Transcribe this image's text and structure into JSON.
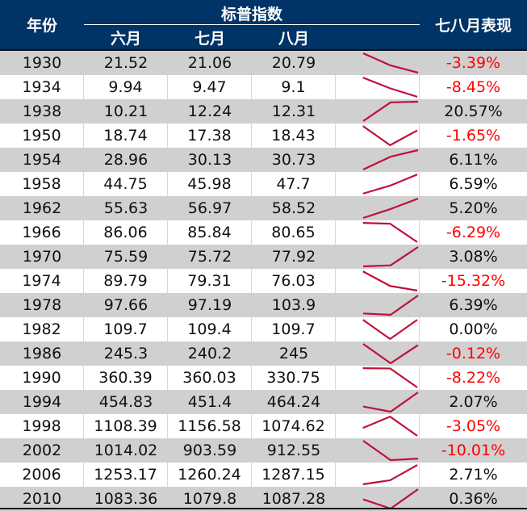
{
  "header": {
    "year_label": "年份",
    "group_label": "标普指数",
    "months": [
      "六月",
      "七月",
      "八月"
    ],
    "performance_label": "七八月表现"
  },
  "colors": {
    "header_bg": "#003366",
    "header_text": "#ffffff",
    "row_shaded": "#d0d0d0",
    "row_plain": "#ffffff",
    "negative": "#ff0000",
    "sparkline": "#c0103a"
  },
  "rows": [
    {
      "year": "1930",
      "jun": "21.52",
      "jul": "21.06",
      "aug": "20.79",
      "perf": "-3.39%"
    },
    {
      "year": "1934",
      "jun": "9.94",
      "jul": "9.47",
      "aug": "9.1",
      "perf": "-8.45%"
    },
    {
      "year": "1938",
      "jun": "10.21",
      "jul": "12.24",
      "aug": "12.31",
      "perf": "20.57%"
    },
    {
      "year": "1950",
      "jun": "18.74",
      "jul": "17.38",
      "aug": "18.43",
      "perf": "-1.65%"
    },
    {
      "year": "1954",
      "jun": "28.96",
      "jul": "30.13",
      "aug": "30.73",
      "perf": "6.11%"
    },
    {
      "year": "1958",
      "jun": "44.75",
      "jul": "45.98",
      "aug": "47.7",
      "perf": "6.59%"
    },
    {
      "year": "1962",
      "jun": "55.63",
      "jul": "56.97",
      "aug": "58.52",
      "perf": "5.20%"
    },
    {
      "year": "1966",
      "jun": "86.06",
      "jul": "85.84",
      "aug": "80.65",
      "perf": "-6.29%"
    },
    {
      "year": "1970",
      "jun": "75.59",
      "jul": "75.72",
      "aug": "77.92",
      "perf": "3.08%"
    },
    {
      "year": "1974",
      "jun": "89.79",
      "jul": "79.31",
      "aug": "76.03",
      "perf": "-15.32%"
    },
    {
      "year": "1978",
      "jun": "97.66",
      "jul": "97.19",
      "aug": "103.9",
      "perf": "6.39%"
    },
    {
      "year": "1982",
      "jun": "109.7",
      "jul": "109.4",
      "aug": "109.7",
      "perf": "0.00%"
    },
    {
      "year": "1986",
      "jun": "245.3",
      "jul": "240.2",
      "aug": "245",
      "perf": "-0.12%"
    },
    {
      "year": "1990",
      "jun": "360.39",
      "jul": "360.03",
      "aug": "330.75",
      "perf": "-8.22%"
    },
    {
      "year": "1994",
      "jun": "454.83",
      "jul": "451.4",
      "aug": "464.24",
      "perf": "2.07%"
    },
    {
      "year": "1998",
      "jun": "1108.39",
      "jul": "1156.58",
      "aug": "1074.62",
      "perf": "-3.05%"
    },
    {
      "year": "2002",
      "jun": "1014.02",
      "jul": "903.59",
      "aug": "912.55",
      "perf": "-10.01%"
    },
    {
      "year": "2006",
      "jun": "1253.17",
      "jul": "1260.24",
      "aug": "1287.15",
      "perf": "2.71%"
    },
    {
      "year": "2010",
      "jun": "1083.36",
      "jul": "1079.8",
      "aug": "1087.28",
      "perf": "0.36%"
    }
  ]
}
